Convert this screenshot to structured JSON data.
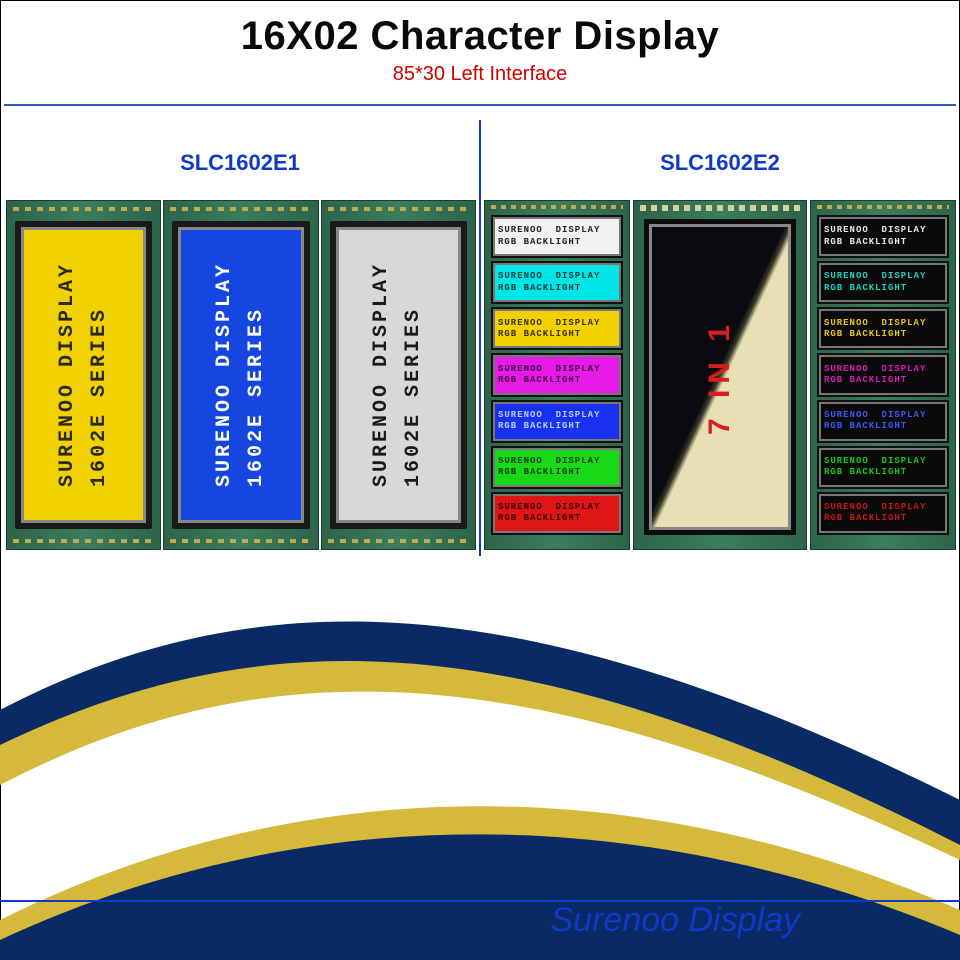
{
  "header": {
    "title": "16X02 Character Display",
    "subtitle": "85*30 Left Interface"
  },
  "sections": {
    "left_label": "SLC1602E1",
    "right_label": "SLC1602E2"
  },
  "left_displays": [
    {
      "bg": "#f2d100",
      "fg": "#2a2a10",
      "line1": "SURENOO DISPLAY",
      "line2": "1602E SERIES"
    },
    {
      "bg": "#1546e0",
      "fg": "#ffffff",
      "line1": "SURENOO DISPLAY",
      "line2": "1602E SERIES"
    },
    {
      "bg": "#d8d8d8",
      "fg": "#1a1a1a",
      "line1": "SURENOO DISPLAY",
      "line2": "1602E SERIES"
    }
  ],
  "rgb_text": {
    "line1": "SURENOO  DISPLAY",
    "line2": "RGB BACKLIGHT"
  },
  "rgb_left": [
    {
      "bg": "#f2f2f2",
      "fg": "#222222"
    },
    {
      "bg": "#00e6e6",
      "fg": "#063a3a"
    },
    {
      "bg": "#f2d100",
      "fg": "#3a3000"
    },
    {
      "bg": "#e81ae8",
      "fg": "#3a003a"
    },
    {
      "bg": "#1830f0",
      "fg": "#bcd0ff"
    },
    {
      "bg": "#17d917",
      "fg": "#063a06"
    },
    {
      "bg": "#e01515",
      "fg": "#3a0000"
    }
  ],
  "rgb_right": [
    {
      "bg": "#0a0a0a",
      "fg": "#e8e8e8"
    },
    {
      "bg": "#0a0a0a",
      "fg": "#14d4c4"
    },
    {
      "bg": "#0a0a0a",
      "fg": "#e6c914"
    },
    {
      "bg": "#0a0a0a",
      "fg": "#d81ab8"
    },
    {
      "bg": "#0a0a0a",
      "fg": "#3a58ff"
    },
    {
      "bg": "#0a0a0a",
      "fg": "#17c917"
    },
    {
      "bg": "#0a0a0a",
      "fg": "#c91515"
    }
  ],
  "center": {
    "label": "7 IN 1",
    "color": "#d91e1e"
  },
  "brand": "Surenoo Display",
  "swoosh_colors": {
    "outer": "#0a2a66",
    "inner": "#d4b93a"
  }
}
